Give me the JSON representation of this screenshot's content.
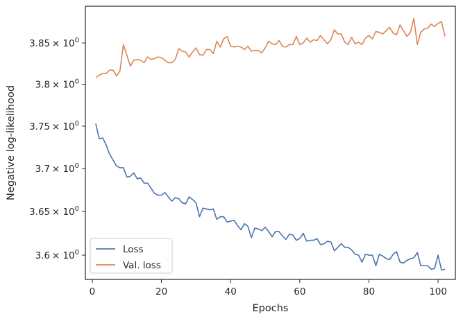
{
  "chart_data": {
    "type": "line",
    "xlabel": "Epochs",
    "ylabel": "Negative log-likelihood",
    "xlim": [
      -2,
      105
    ],
    "ylim": [
      3.5725,
      3.895
    ],
    "yscale": "log",
    "grid": false,
    "legend_position": "lower-left",
    "x_ticks": [
      {
        "value": 0,
        "label": "0"
      },
      {
        "value": 20,
        "label": "20"
      },
      {
        "value": 40,
        "label": "40"
      },
      {
        "value": 60,
        "label": "60"
      },
      {
        "value": 80,
        "label": "80"
      },
      {
        "value": 100,
        "label": "100"
      }
    ],
    "y_ticks": [
      {
        "value": 3.6,
        "base": "3.6",
        "mult": "× 10",
        "exp": "0"
      },
      {
        "value": 3.65,
        "base": "3.65",
        "mult": "× 10",
        "exp": "0"
      },
      {
        "value": 3.7,
        "base": "3.7",
        "mult": "× 10",
        "exp": "0"
      },
      {
        "value": 3.75,
        "base": "3.75",
        "mult": "× 10",
        "exp": "0"
      },
      {
        "value": 3.8,
        "base": "3.8",
        "mult": "× 10",
        "exp": "0"
      },
      {
        "value": 3.85,
        "base": "3.85",
        "mult": "× 10",
        "exp": "0"
      }
    ],
    "series": [
      {
        "name": "Loss",
        "color": "#4c72b0",
        "x_start": 1,
        "values": [
          3.753,
          3.735,
          3.736,
          3.728,
          3.717,
          3.71,
          3.703,
          3.701,
          3.701,
          3.69,
          3.691,
          3.695,
          3.688,
          3.689,
          3.683,
          3.683,
          3.677,
          3.671,
          3.669,
          3.669,
          3.672,
          3.667,
          3.662,
          3.666,
          3.665,
          3.66,
          3.659,
          3.667,
          3.664,
          3.66,
          3.644,
          3.654,
          3.653,
          3.652,
          3.653,
          3.641,
          3.644,
          3.644,
          3.638,
          3.639,
          3.64,
          3.634,
          3.629,
          3.636,
          3.633,
          3.62,
          3.631,
          3.63,
          3.628,
          3.632,
          3.627,
          3.621,
          3.627,
          3.627,
          3.622,
          3.618,
          3.624,
          3.623,
          3.617,
          3.619,
          3.625,
          3.616,
          3.617,
          3.617,
          3.619,
          3.612,
          3.613,
          3.616,
          3.615,
          3.605,
          3.609,
          3.613,
          3.609,
          3.609,
          3.606,
          3.601,
          3.6,
          3.592,
          3.601,
          3.6,
          3.6,
          3.588,
          3.601,
          3.599,
          3.596,
          3.595,
          3.601,
          3.604,
          3.592,
          3.591,
          3.594,
          3.596,
          3.597,
          3.603,
          3.588,
          3.588,
          3.588,
          3.584,
          3.585,
          3.6,
          3.583,
          3.584
        ]
      },
      {
        "name": "Val. loss",
        "color": "#dd8452",
        "x_start": 1,
        "values": [
          3.808,
          3.811,
          3.813,
          3.813,
          3.817,
          3.817,
          3.81,
          3.816,
          3.848,
          3.835,
          3.822,
          3.829,
          3.83,
          3.829,
          3.826,
          3.833,
          3.83,
          3.831,
          3.833,
          3.832,
          3.829,
          3.826,
          3.826,
          3.83,
          3.843,
          3.84,
          3.839,
          3.833,
          3.839,
          3.844,
          3.836,
          3.835,
          3.842,
          3.842,
          3.837,
          3.852,
          3.845,
          3.855,
          3.858,
          3.846,
          3.845,
          3.846,
          3.845,
          3.842,
          3.846,
          3.84,
          3.841,
          3.841,
          3.838,
          3.844,
          3.852,
          3.849,
          3.848,
          3.853,
          3.846,
          3.845,
          3.848,
          3.848,
          3.858,
          3.848,
          3.85,
          3.856,
          3.851,
          3.854,
          3.853,
          3.859,
          3.854,
          3.849,
          3.854,
          3.866,
          3.861,
          3.861,
          3.851,
          3.848,
          3.857,
          3.849,
          3.851,
          3.848,
          3.856,
          3.859,
          3.855,
          3.864,
          3.863,
          3.861,
          3.865,
          3.869,
          3.862,
          3.86,
          3.872,
          3.865,
          3.858,
          3.863,
          3.88,
          3.848,
          3.863,
          3.867,
          3.868,
          3.873,
          3.87,
          3.874,
          3.876,
          3.858
        ]
      }
    ]
  }
}
